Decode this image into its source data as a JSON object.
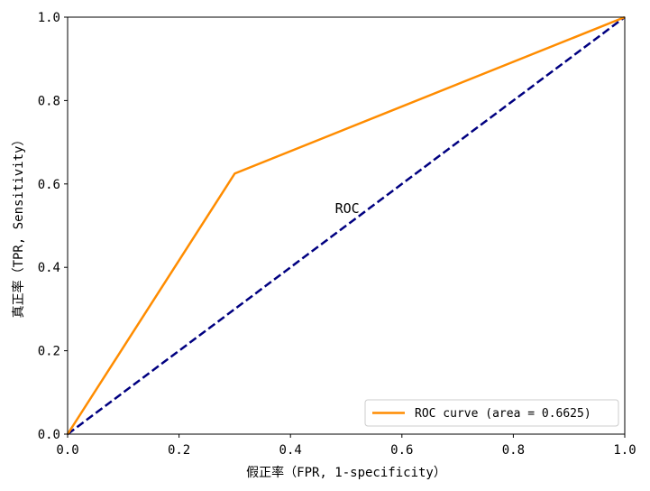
{
  "chart_data": {
    "type": "line",
    "title": "",
    "xlabel": "假正率（FPR, 1-specificity）",
    "ylabel": "真正率（TPR, Sensitivity）",
    "xlim": [
      0.0,
      1.0
    ],
    "ylim": [
      0.0,
      1.0
    ],
    "xticks": [
      "0.0",
      "0.2",
      "0.4",
      "0.6",
      "0.8",
      "1.0"
    ],
    "yticks": [
      "0.0",
      "0.2",
      "0.4",
      "0.6",
      "0.8",
      "1.0"
    ],
    "grid": false,
    "legend_position": "lower-right",
    "series": [
      {
        "name": "ROC curve (area = 0.6625)",
        "x": [
          0.0,
          0.3,
          1.0
        ],
        "y": [
          0.0,
          0.625,
          1.0
        ],
        "color": "#ff8c00",
        "style": "solid"
      },
      {
        "x": [
          0.0,
          1.0
        ],
        "y": [
          0.0,
          1.0
        ],
        "color": "#000080",
        "style": "dashed"
      }
    ],
    "annotations": [
      {
        "text": "ROC",
        "x": 0.48,
        "y": 0.53
      }
    ]
  }
}
